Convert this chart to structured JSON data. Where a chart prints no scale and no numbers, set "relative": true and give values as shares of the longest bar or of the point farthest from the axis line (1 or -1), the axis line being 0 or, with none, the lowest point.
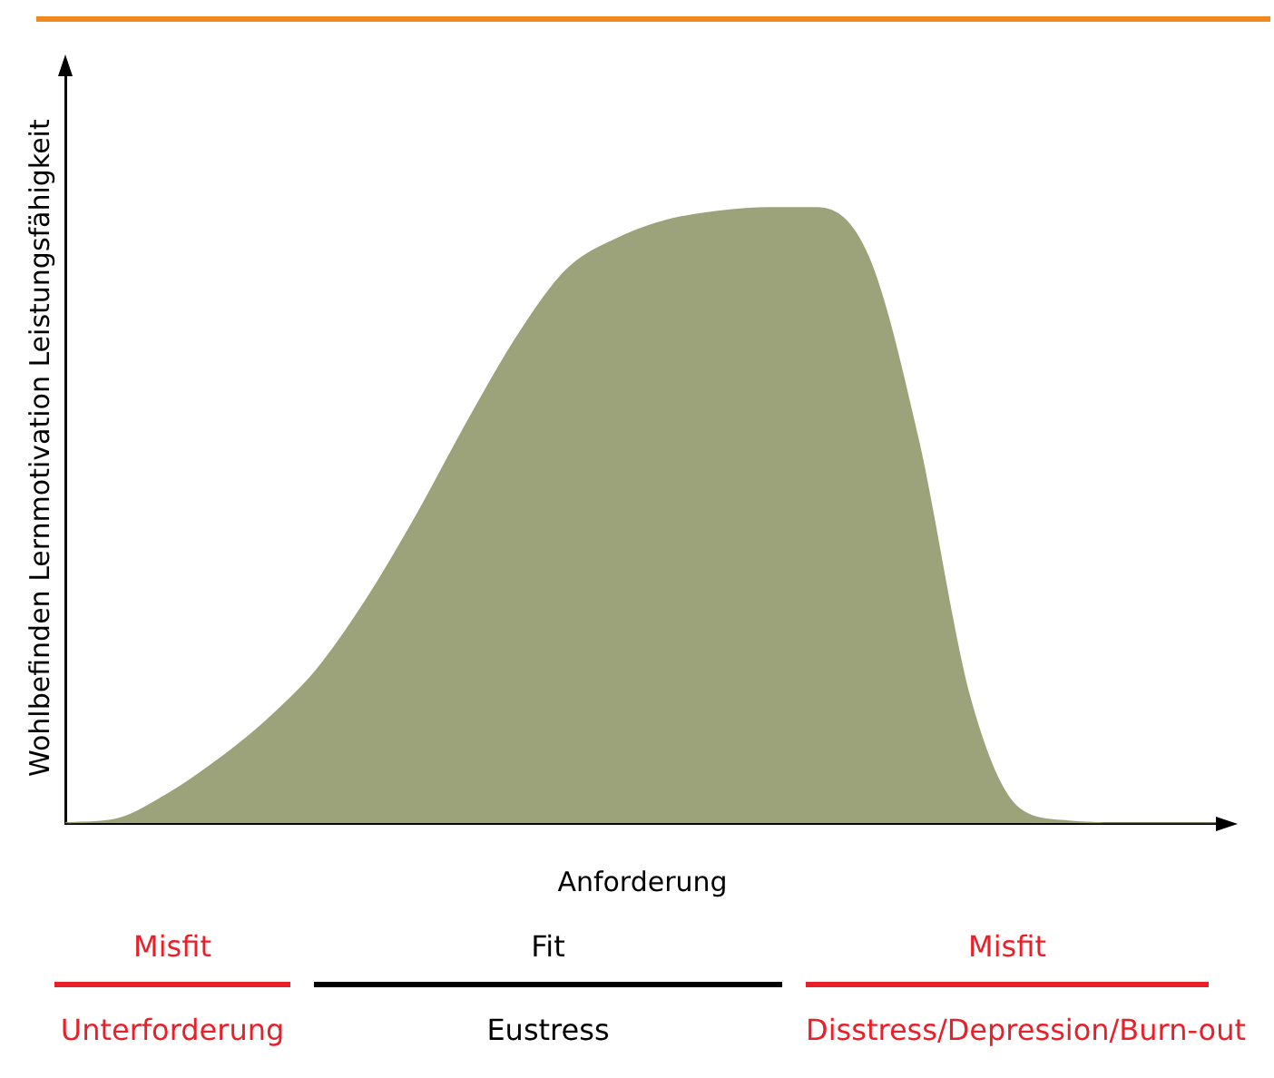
{
  "chart_data": {
    "type": "area",
    "relative": true,
    "xlabel": "Anforderung",
    "ylabel": "Wohlbefinden Lernmotivation Leistungsfähigkeit",
    "categories": [
      null,
      null,
      null,
      null,
      null,
      null,
      null,
      null,
      null,
      null,
      null,
      null,
      null,
      null,
      null,
      null,
      null,
      null,
      null,
      null,
      null,
      null,
      null,
      null
    ],
    "series": [
      {
        "color": "#9ca27a",
        "values": [
          0,
          0.006,
          0.045,
          0.1,
          0.166,
          0.248,
          0.363,
          0.5,
          0.65,
          0.79,
          0.9,
          0.95,
          0.98,
          0.994,
          1,
          1,
          0.92,
          0.62,
          0.21,
          0.024,
          0.003,
          0,
          0,
          0
        ]
      }
    ],
    "legend": false,
    "grid": false,
    "annotations": [
      "Misfit",
      "Fit",
      "Misfit",
      "Unterforderung",
      "Eustress",
      "Disstress/Depression/Burn-out"
    ]
  }
}
